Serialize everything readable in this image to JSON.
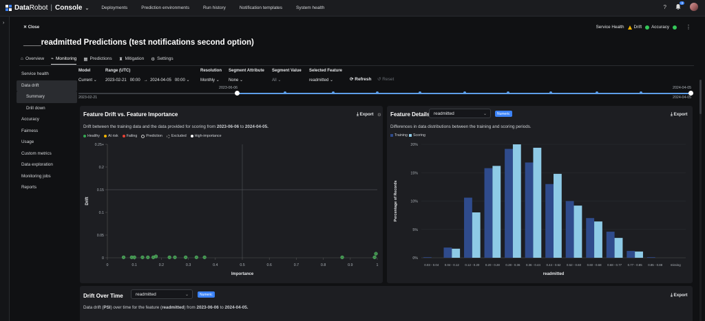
{
  "topbar": {
    "logo_data": "Data",
    "logo_robot": "Robot",
    "logo_sep": "|",
    "console": "Console",
    "nav": [
      "Deployments",
      "Prediction environments",
      "Run history",
      "Notification templates",
      "System health"
    ],
    "help": "?",
    "notif_count": "3"
  },
  "header": {
    "close": "Close",
    "service_health": "Service Health",
    "drift": "Drift",
    "accuracy": "Accuracy",
    "title": "____readmitted Predictions (test notifications second option)"
  },
  "tabs": [
    {
      "label": "Overview",
      "icon": "home-icon"
    },
    {
      "label": "Monitoring",
      "icon": "chart-line-icon",
      "active": true
    },
    {
      "label": "Predictions",
      "icon": "grid-icon"
    },
    {
      "label": "Mitigation",
      "icon": "trophy-icon"
    },
    {
      "label": "Settings",
      "icon": "gear-icon"
    }
  ],
  "sidebar": {
    "items": [
      {
        "label": "Service health"
      },
      {
        "label": "Data drift",
        "active": true
      },
      {
        "label": "Summary",
        "sub": true,
        "active": true
      },
      {
        "label": "Drill down",
        "sub": true
      },
      {
        "label": "Accuracy"
      },
      {
        "label": "Fairness"
      },
      {
        "label": "Usage"
      },
      {
        "label": "Custom metrics"
      },
      {
        "label": "Data exploration"
      },
      {
        "label": "Monitoring jobs"
      },
      {
        "label": "Reports"
      }
    ]
  },
  "filters": {
    "model_label": "Model",
    "model_value": "Current",
    "range_label": "Range (UTC)",
    "range_start_date": "2023-02-21",
    "range_start_time": "00:00",
    "range_arrow": "→",
    "range_end_date": "2024-04-05",
    "range_end_time": "00:00",
    "resolution_label": "Resolution",
    "resolution_value": "Monthly",
    "segment_attr_label": "Segment Attribute",
    "segment_attr_value": "None",
    "segment_value_label": "Segment Value",
    "segment_value_value": "All",
    "selected_feature_label": "Selected Feature",
    "selected_feature_value": "readmitted",
    "refresh": "Refresh",
    "reset": "Reset"
  },
  "timeline": {
    "start_label": "2023-02-21",
    "handle_left_label": "2023-06-06",
    "handle_right_label": "2024-04-05",
    "end_label": "2024-04-05"
  },
  "drift_panel": {
    "title": "Feature Drift vs. Feature Importance",
    "export": "Export",
    "desc_prefix": "Drift between the training data and the data provided for scoring from",
    "desc_start": "2023-06-06",
    "desc_to": "to",
    "desc_end": "2024-04-05.",
    "legend": [
      {
        "label": "Healthy",
        "color": "#34a853"
      },
      {
        "label": "At risk",
        "color": "#f4b400"
      },
      {
        "label": "Failing",
        "color": "#ea4335"
      },
      {
        "label": "Prediction",
        "color": "#cccccc"
      },
      {
        "label": "Excluded",
        "color": "#888888"
      },
      {
        "label": "High-importance",
        "color": "#ffffff"
      }
    ]
  },
  "details_panel": {
    "title": "Feature Details",
    "select_value": "readmitted",
    "badge": "Numeric",
    "export": "Export",
    "desc": "Differences in data distributions between the training and scoring periods.",
    "legend_training": "Training",
    "legend_scoring": "Scoring",
    "colors": {
      "training": "#2f4b8c",
      "scoring": "#8ecae6"
    }
  },
  "time_panel": {
    "title": "Drift Over Time",
    "select_value": "readmitted",
    "badge": "Numeric",
    "export": "Export",
    "desc_prefix": "Data drift (",
    "desc_psi": "PSI",
    "desc_mid": ") over time for the feature (",
    "desc_feature": "readmitted",
    "desc_mid2": ") from",
    "desc_start": "2023-06-06",
    "desc_to": "to",
    "desc_end": "2024-04-05."
  },
  "chart_data": [
    {
      "type": "scatter",
      "title": "Feature Drift vs. Feature Importance",
      "xlabel": "Importance",
      "ylabel": "Drift",
      "xlim": [
        0,
        1
      ],
      "ylim": [
        0,
        0.25
      ],
      "x_ticks": [
        "0",
        "0.1",
        "0.2",
        "0.3",
        "0.4",
        "0.5",
        "0.6",
        "0.7",
        "0.8",
        "0.9",
        "1"
      ],
      "y_ticks": [
        "0",
        "0.05",
        "0.1",
        "0.15",
        "0.2",
        "0.25+"
      ],
      "threshold_x": 0.5,
      "threshold_y": 0.15,
      "points": [
        {
          "x": 0.06,
          "y": 0.001
        },
        {
          "x": 0.09,
          "y": 0.001
        },
        {
          "x": 0.1,
          "y": 0.001
        },
        {
          "x": 0.13,
          "y": 0.001
        },
        {
          "x": 0.15,
          "y": 0.001
        },
        {
          "x": 0.17,
          "y": 0.001
        },
        {
          "x": 0.18,
          "y": 0.003
        },
        {
          "x": 0.23,
          "y": 0.001
        },
        {
          "x": 0.25,
          "y": 0.001
        },
        {
          "x": 0.29,
          "y": 0.001
        },
        {
          "x": 0.33,
          "y": 0.001
        },
        {
          "x": 0.36,
          "y": 0.001
        },
        {
          "x": 0.87,
          "y": 0.001
        },
        {
          "x": 0.99,
          "y": 0.001
        },
        {
          "x": 0.995,
          "y": 0.009
        }
      ]
    },
    {
      "type": "bar",
      "title": "Feature Details",
      "xlabel": "readmitted",
      "ylabel": "Percentage of Records",
      "ylim": [
        0,
        20
      ],
      "y_ticks": [
        "0%",
        "5%",
        "10%",
        "15%",
        "20%"
      ],
      "categories": [
        "0.03 - 0.04",
        "0.04 - 0.12",
        "0.12 - 0.20",
        "0.20 - 0.28",
        "0.28 - 0.36",
        "0.36 - 0.44",
        "0.44 - 0.52",
        "0.52 - 0.60",
        "0.60 - 0.68",
        "0.68 - 0.77",
        "0.77 - 0.85",
        "0.85 - 0.88",
        "missing"
      ],
      "series": [
        {
          "name": "Training",
          "values": [
            0.1,
            1.8,
            10.6,
            15.8,
            19.2,
            16.8,
            13,
            10,
            7,
            4.6,
            1.2,
            0.1,
            0
          ]
        },
        {
          "name": "Scoring",
          "values": [
            0,
            1.6,
            8,
            16.2,
            20,
            19.4,
            14.8,
            9.2,
            6.4,
            3.5,
            1.1,
            0,
            0
          ]
        }
      ]
    }
  ]
}
